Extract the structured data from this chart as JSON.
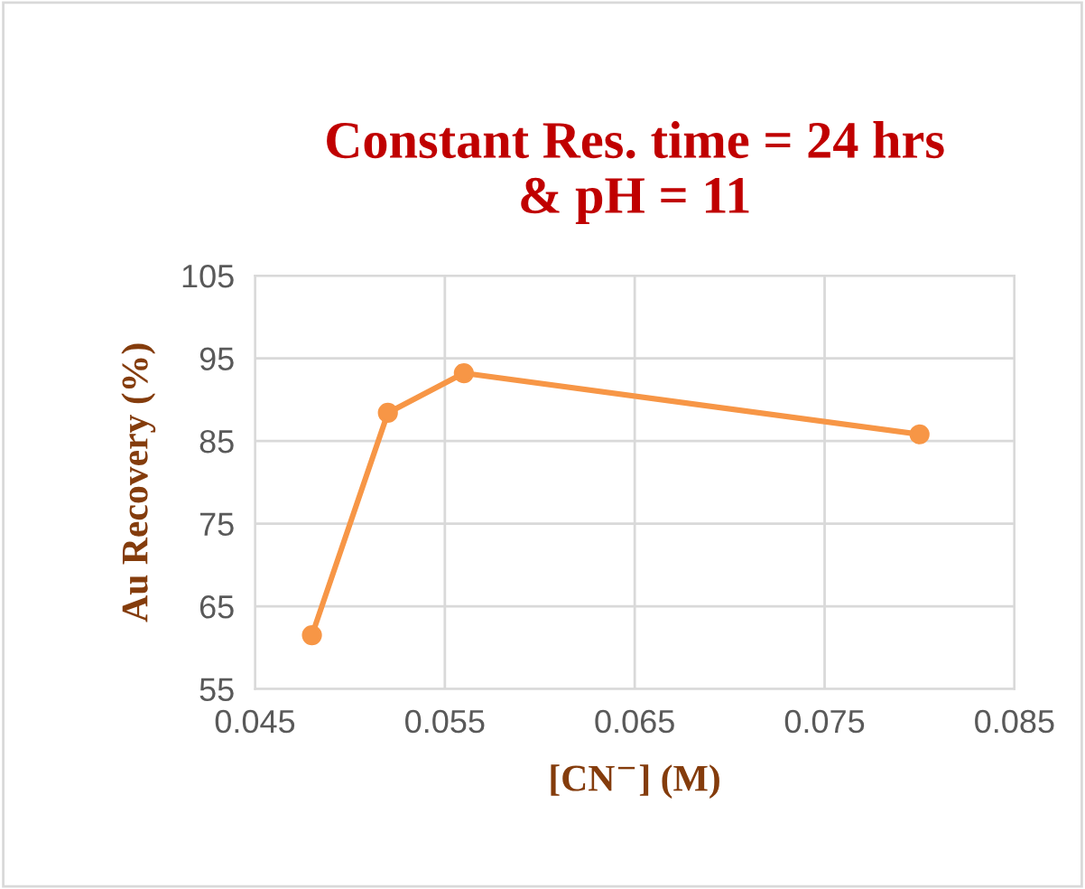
{
  "chart_data": {
    "type": "line",
    "title": "Constant Res. time = 24 hrs\n& pH = 11",
    "xlabel": "[CN$^{−}$] (M)",
    "ylabel": "Au Recovery (%)",
    "x": [
      0.048,
      0.052,
      0.056,
      0.08
    ],
    "series": [
      {
        "color": "#f79646",
        "values": [
          61.5,
          88.4,
          93.2,
          85.8
        ]
      }
    ],
    "xlim": [
      0.045,
      0.085
    ],
    "xticks": [
      {
        "value": 0.045,
        "label": "0.045"
      },
      {
        "value": 0.055,
        "label": "0.055"
      },
      {
        "value": 0.065,
        "label": "0.065"
      },
      {
        "value": 0.075,
        "label": "0.075"
      },
      {
        "value": 0.085,
        "label": "0.085"
      }
    ],
    "ylim": [
      55,
      105
    ],
    "yticks": [
      55,
      65,
      75,
      85,
      95,
      105
    ],
    "grid": true,
    "marker": "circle",
    "line_style": "solid"
  }
}
